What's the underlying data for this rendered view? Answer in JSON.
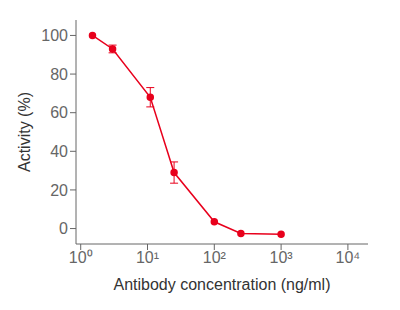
{
  "chart_data": {
    "type": "line",
    "x": [
      1.5,
      3.0,
      11.0,
      25.0,
      100.0,
      250.0,
      1000.0
    ],
    "values": [
      100.0,
      93.0,
      68.0,
      29.0,
      3.5,
      -2.5,
      -3.0
    ],
    "yerr": [
      0.0,
      2.0,
      5.0,
      5.5,
      0.0,
      0.0,
      0.0
    ],
    "color": "#e8001c",
    "marker": "circle",
    "xlabel": "Antibody concentration (ng/ml)",
    "ylabel": "Activity (%)",
    "log": "x",
    "xlim": [
      0.85,
      20000
    ],
    "ylim": [
      -8,
      108
    ],
    "xticks": [
      {
        "value": 1,
        "label": "10⁰"
      },
      {
        "value": 10,
        "label": "10¹"
      },
      {
        "value": 100,
        "label": "10²"
      },
      {
        "value": 1000,
        "label": "10³"
      },
      {
        "value": 10000,
        "label": "10⁴"
      }
    ],
    "yticks": [
      0,
      20,
      40,
      60,
      80,
      100
    ],
    "grid": false
  }
}
